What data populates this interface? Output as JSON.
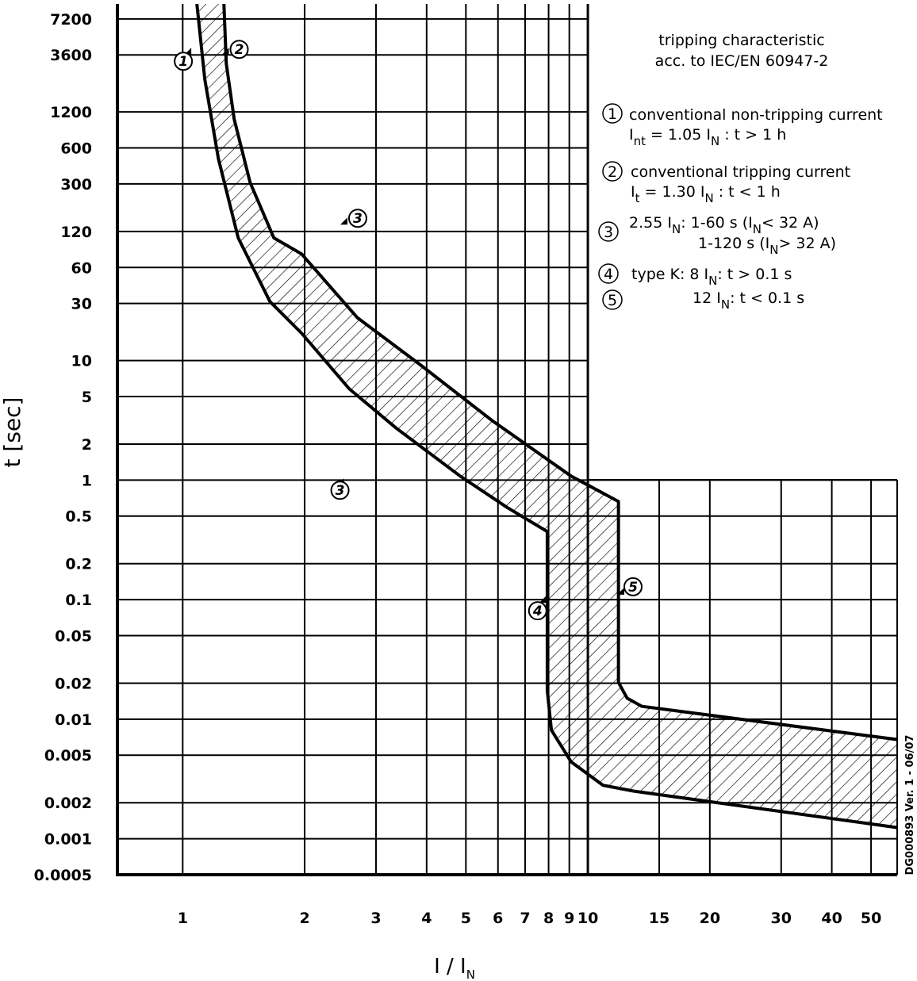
{
  "chart_data": {
    "type": "band",
    "title": [
      "tripping characteristic",
      "acc. to IEC/EN 60947-2"
    ],
    "x_label": [
      "I / I",
      "N"
    ],
    "y_label": "t [sec]",
    "side_note": "DG000893 Ver. 1 - 06/07",
    "xscale": "log",
    "yscale": "log",
    "xlim": [
      0.69,
      58
    ],
    "ylim": [
      0.0005,
      9600
    ],
    "xticks": [
      1,
      2,
      3,
      4,
      5,
      6,
      7,
      8,
      9,
      10,
      15,
      20,
      30,
      40,
      50
    ],
    "yticks": [
      7200,
      3600,
      1200,
      600,
      300,
      120,
      60,
      30,
      10,
      5,
      2,
      1,
      0.5,
      0.2,
      0.1,
      0.05,
      0.02,
      0.01,
      0.005,
      0.002,
      0.001,
      0.0005
    ],
    "grid": true,
    "color": "#000000",
    "series": [
      {
        "x": [
          1.264,
          1.281,
          1.34,
          1.467,
          1.679,
          1.966,
          2.695,
          3.865,
          5.8,
          9.09,
          11.9,
          11.9,
          12.5,
          13.6,
          58
        ],
        "values": [
          9600,
          3048,
          1045,
          308,
          106,
          77.8,
          22.9,
          9.17,
          3.15,
          1.08,
          0.662,
          0.0203,
          0.015,
          0.0128,
          0.00676
        ]
      },
      {
        "x": [
          1.084,
          1.134,
          1.225,
          1.371,
          1.642,
          1.966,
          2.576,
          3.374,
          4.84,
          6.34,
          7.94,
          7.94,
          8.13,
          9.09,
          10.9,
          13.0,
          58
        ],
        "values": [
          9600,
          2245,
          487,
          106,
          31.1,
          16.9,
          5.8,
          2.7,
          1.08,
          0.586,
          0.371,
          0.0174,
          0.0081,
          0.0044,
          0.0028,
          0.0025,
          0.00124
        ]
      }
    ],
    "annotations": [
      {
        "label": "1",
        "x": 1.05,
        "y": 3600
      },
      {
        "label": "2",
        "x": 1.3,
        "y": 3600
      },
      {
        "label": "3",
        "x": 2.55,
        "y": 137
      },
      {
        "label": "3",
        "x": 2.5,
        "y": 0.9
      },
      {
        "label": "4",
        "x": 7.9,
        "y": 0.094
      },
      {
        "label": "5",
        "x": 12.3,
        "y": 0.11
      }
    ],
    "legend": [
      {
        "number": "1",
        "lines": [
          [
            "conventional non-tripping current"
          ],
          [
            "I",
            "nt",
            " = 1.05 I",
            "N",
            " : t > 1 h"
          ]
        ]
      },
      {
        "number": "2",
        "lines": [
          [
            "conventional tripping current"
          ],
          [
            "I",
            "t",
            " = 1.30 I",
            "N",
            " : t < 1 h"
          ]
        ]
      },
      {
        "number": "3",
        "lines": [
          [
            "2.55 I",
            "N",
            ":  1-60 s (I",
            "N",
            "< 32 A)"
          ],
          [
            "1-120 s (I",
            "N",
            "> 32 A)"
          ]
        ]
      },
      {
        "number": "4",
        "lines": [
          [
            "type K:   8 I",
            "N",
            ": t > 0.1 s"
          ]
        ]
      },
      {
        "number": "5",
        "lines": [
          [
            "12 I",
            "N",
            ": t < 0.1 s"
          ]
        ]
      }
    ]
  }
}
